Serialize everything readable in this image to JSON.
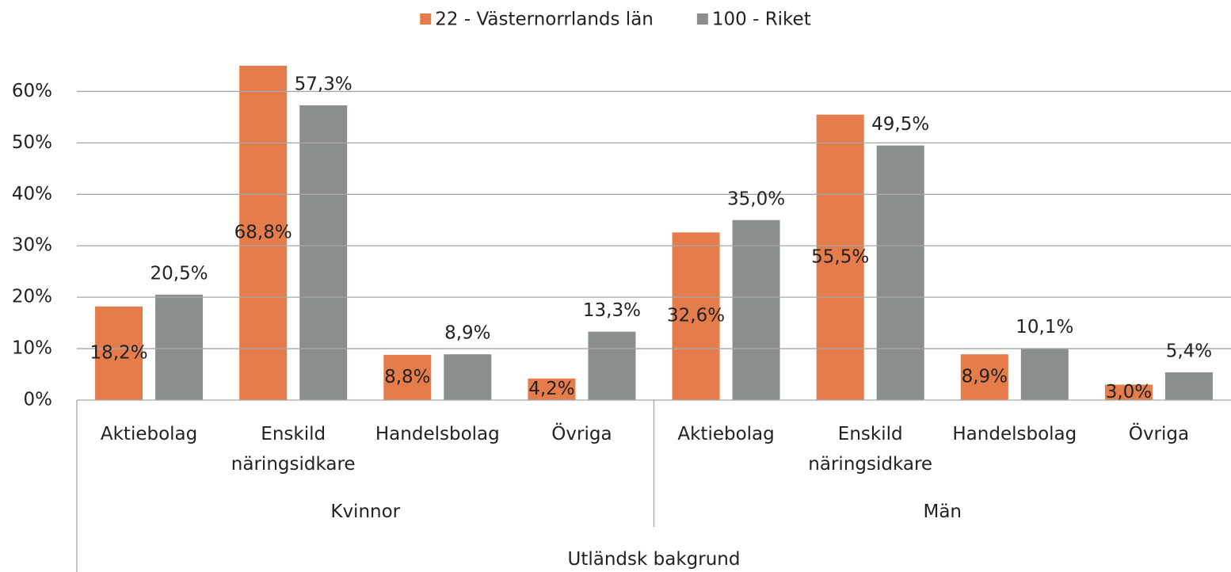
{
  "chart_data": {
    "type": "bar",
    "legend": "top",
    "categories": [
      "Aktiebolag",
      "Enskild näringsidkare",
      "Handelsbolag",
      "Övriga",
      "Aktiebolag",
      "Enskild näringsidkare",
      "Handelsbolag",
      "Övriga"
    ],
    "category_groups": [
      "Kvinnor",
      "Män"
    ],
    "category_supergroup": "Utländsk bakgrund",
    "series": [
      {
        "name": "22 - Västernorrlands län",
        "color": "#e57c4c",
        "values": [
          18.2,
          68.8,
          8.8,
          4.2,
          32.6,
          55.5,
          8.9,
          3.0
        ],
        "value_labels": [
          "18,2%",
          "68,8%",
          "8,8%",
          "4,2%",
          "32,6%",
          "55,5%",
          "8,9%",
          "3,0%"
        ]
      },
      {
        "name": "100 - Riket",
        "color": "#8b8f8c",
        "values": [
          20.5,
          57.3,
          8.9,
          13.3,
          35.0,
          49.5,
          10.1,
          5.4
        ],
        "value_labels": [
          "20,5%",
          "57,3%",
          "8,9%",
          "13,3%",
          "35,0%",
          "49,5%",
          "10,1%",
          "5,4%"
        ]
      }
    ],
    "ylim": [
      0,
      65
    ],
    "yticks": [
      {
        "value": 0,
        "label": "0%"
      },
      {
        "value": 10,
        "label": "10%"
      },
      {
        "value": 20,
        "label": "20%"
      },
      {
        "value": 30,
        "label": "30%"
      },
      {
        "value": 40,
        "label": "40%"
      },
      {
        "value": 50,
        "label": "50%"
      },
      {
        "value": 60,
        "label": "60%"
      }
    ],
    "grid": true
  }
}
